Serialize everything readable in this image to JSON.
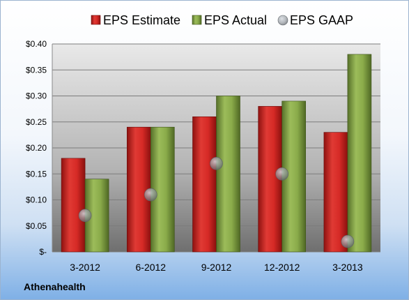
{
  "chart_data": {
    "type": "bar",
    "title": "",
    "xlabel": "",
    "ylabel": "",
    "categories": [
      "3-2012",
      "6-2012",
      "9-2012",
      "12-2012",
      "3-2013"
    ],
    "series": [
      {
        "name": "EPS Estimate",
        "type": "bar",
        "color": "#c8201e",
        "values": [
          0.18,
          0.24,
          0.26,
          0.28,
          0.23
        ]
      },
      {
        "name": "EPS Actual",
        "type": "bar",
        "color": "#7a9a3a",
        "values": [
          0.14,
          0.24,
          0.3,
          0.29,
          0.38
        ]
      },
      {
        "name": "EPS GAAP",
        "type": "scatter",
        "color": "#8a8f96",
        "values": [
          0.07,
          0.11,
          0.17,
          0.15,
          0.02
        ]
      }
    ],
    "ylim": [
      0,
      0.4
    ],
    "yticks": [
      0,
      0.05,
      0.1,
      0.15,
      0.2,
      0.25,
      0.3,
      0.35,
      0.4
    ],
    "ytick_labels": [
      "$-",
      "$0.05",
      "$0.10",
      "$0.15",
      "$0.20",
      "$0.25",
      "$0.30",
      "$0.35",
      "$0.40"
    ],
    "grid": true,
    "legend": "top"
  },
  "footer": {
    "company": "Athenahealth"
  }
}
